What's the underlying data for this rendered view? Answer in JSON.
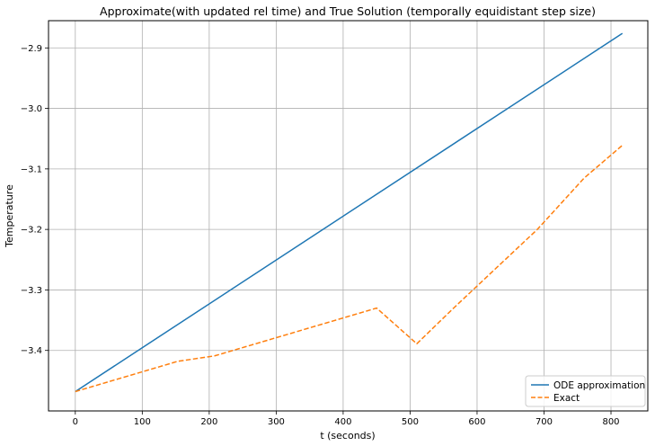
{
  "chart_data": {
    "type": "line",
    "title": "Approximate(with updated rel time) and True Solution (temporally equidistant step size)",
    "xlabel": "t (seconds)",
    "ylabel": "Temperature",
    "xlim": [
      -40,
      855
    ],
    "ylim": [
      -3.5,
      -2.855
    ],
    "xticks": [
      0,
      100,
      200,
      300,
      400,
      500,
      600,
      700,
      800
    ],
    "xtick_labels": [
      "0",
      "100",
      "200",
      "300",
      "400",
      "500",
      "600",
      "700",
      "800"
    ],
    "yticks": [
      -2.9,
      -3.0,
      -3.1,
      -3.2,
      -3.3,
      -3.4
    ],
    "ytick_labels": [
      "−2.9",
      "−3.0",
      "−3.1",
      "−3.2",
      "−3.3",
      "−3.4"
    ],
    "grid": true,
    "legend_position": "lower-right",
    "series": [
      {
        "name": "ODE approximation",
        "style": "solid",
        "color": "#1f77b4",
        "x": [
          0,
          817
        ],
        "y": [
          -3.468,
          -2.876
        ]
      },
      {
        "name": "Exact",
        "style": "dashed",
        "color": "#ff7f0e",
        "x": [
          0,
          153,
          208,
          450,
          510,
          565,
          690,
          760,
          817
        ],
        "y": [
          -3.468,
          -3.418,
          -3.409,
          -3.33,
          -3.389,
          -3.33,
          -3.2,
          -3.115,
          -3.061
        ]
      }
    ]
  }
}
